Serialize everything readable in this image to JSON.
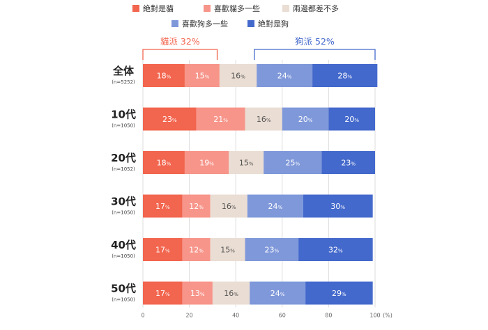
{
  "chart_data": {
    "type": "bar",
    "orientation": "horizontal",
    "stacked": true,
    "legend": {
      "placement": "top",
      "items": [
        {
          "name": "絶對是貓",
          "color": "#F2654E"
        },
        {
          "name": "喜歡貓多一些",
          "color": "#F7958A"
        },
        {
          "name": "兩邊都差不多",
          "color": "#EADDD3"
        },
        {
          "name": "喜歡狗多一些",
          "color": "#7F98DA"
        },
        {
          "name": "絶對是狗",
          "color": "#4469CC"
        }
      ]
    },
    "summary": [
      {
        "label": "貓派 32%",
        "from": 0,
        "to": 32,
        "color": "#F2654E"
      },
      {
        "label": "狗派 52%",
        "from": 48,
        "to": 100,
        "color": "#4469CC"
      }
    ],
    "categories": [
      {
        "label": "全体",
        "sub": "(n=5252)"
      },
      {
        "label": "10代",
        "sub": "(n=1050)"
      },
      {
        "label": "20代",
        "sub": "(n=1052)"
      },
      {
        "label": "30代",
        "sub": "(n=1050)"
      },
      {
        "label": "40代",
        "sub": "(n=1050)"
      },
      {
        "label": "50代",
        "sub": "(n=1050)"
      }
    ],
    "series": [
      {
        "name": "絶對是貓",
        "values": [
          18,
          23,
          18,
          17,
          17,
          17
        ]
      },
      {
        "name": "喜歡貓多一些",
        "values": [
          15,
          21,
          19,
          12,
          12,
          13
        ]
      },
      {
        "name": "兩邊都差不多",
        "values": [
          16,
          16,
          15,
          16,
          15,
          16
        ]
      },
      {
        "name": "喜歡狗多一些",
        "values": [
          24,
          20,
          25,
          24,
          23,
          24
        ]
      },
      {
        "name": "絶對是狗",
        "values": [
          28,
          20,
          23,
          30,
          32,
          29
        ]
      }
    ],
    "label_colors": [
      "#ffffff",
      "#ffffff",
      "#555555",
      "#ffffff",
      "#ffffff"
    ],
    "value_suffix": "%",
    "xlim": [
      0,
      100
    ],
    "xticks": [
      0,
      20,
      40,
      60,
      80,
      100
    ],
    "x_unit": "(%)",
    "grid": true
  }
}
